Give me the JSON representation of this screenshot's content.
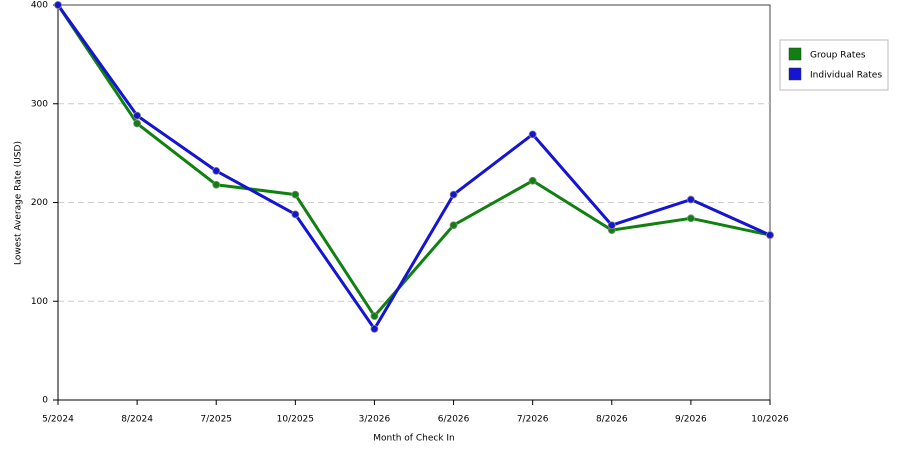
{
  "chart_data": {
    "type": "line",
    "x_label": "Month of Check In",
    "y_label": "Lowest Average Rate (USD)",
    "categories": [
      "5/2024",
      "8/2024",
      "7/2025",
      "10/2025",
      "3/2026",
      "6/2026",
      "7/2026",
      "8/2026",
      "9/2026",
      "10/2026"
    ],
    "series": [
      {
        "name": "Group Rates",
        "color": "#108010",
        "values": [
          400,
          280,
          218,
          208,
          85,
          177,
          222,
          172,
          184,
          167
        ]
      },
      {
        "name": "Individual Rates",
        "color": "#1414d2",
        "values": [
          400,
          288,
          232,
          188,
          72,
          208,
          269,
          177,
          203,
          167
        ]
      }
    ],
    "ylim": [
      0,
      400
    ],
    "yticks": [
      0,
      100,
      200,
      300,
      400
    ],
    "grid": true,
    "legend": "right"
  }
}
